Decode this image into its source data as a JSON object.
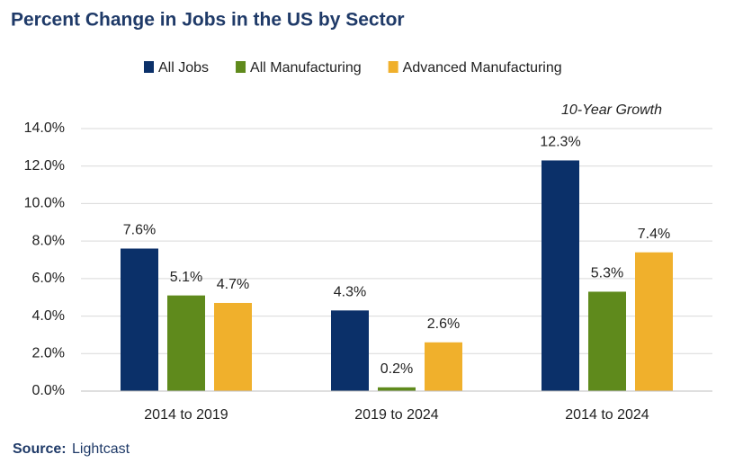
{
  "chart_data": {
    "type": "bar",
    "title": "Percent Change in Jobs in the US by Sector",
    "annotation": "10-Year Growth",
    "source": {
      "label": "Source:",
      "name": "Lightcast"
    },
    "categories": [
      "2014 to 2019",
      "2019 to 2024",
      "2014 to 2024"
    ],
    "series": [
      {
        "name": "All Jobs",
        "color": "#0b3069",
        "values": [
          7.6,
          4.3,
          12.3
        ],
        "value_labels": [
          "7.6%",
          "4.3%",
          "12.3%"
        ]
      },
      {
        "name": "All Manufacturing",
        "color": "#5f8a1c",
        "values": [
          5.1,
          0.2,
          5.3
        ],
        "value_labels": [
          "5.1%",
          "0.2%",
          "5.3%"
        ]
      },
      {
        "name": "Advanced Manufacturing",
        "color": "#f0b02c",
        "values": [
          4.7,
          2.6,
          7.4
        ],
        "value_labels": [
          "4.7%",
          "2.6%",
          "7.4%"
        ]
      }
    ],
    "ylim": [
      0,
      14
    ],
    "yticks": [
      {
        "value": 0,
        "label": "0.0%"
      },
      {
        "value": 2,
        "label": "2.0%"
      },
      {
        "value": 4,
        "label": "4.0%"
      },
      {
        "value": 6,
        "label": "6.0%"
      },
      {
        "value": 8,
        "label": "8.0%"
      },
      {
        "value": 10,
        "label": "10.0%"
      },
      {
        "value": 12,
        "label": "12.0%"
      },
      {
        "value": 14,
        "label": "14.0%"
      }
    ],
    "grid": true,
    "legend": "top"
  }
}
